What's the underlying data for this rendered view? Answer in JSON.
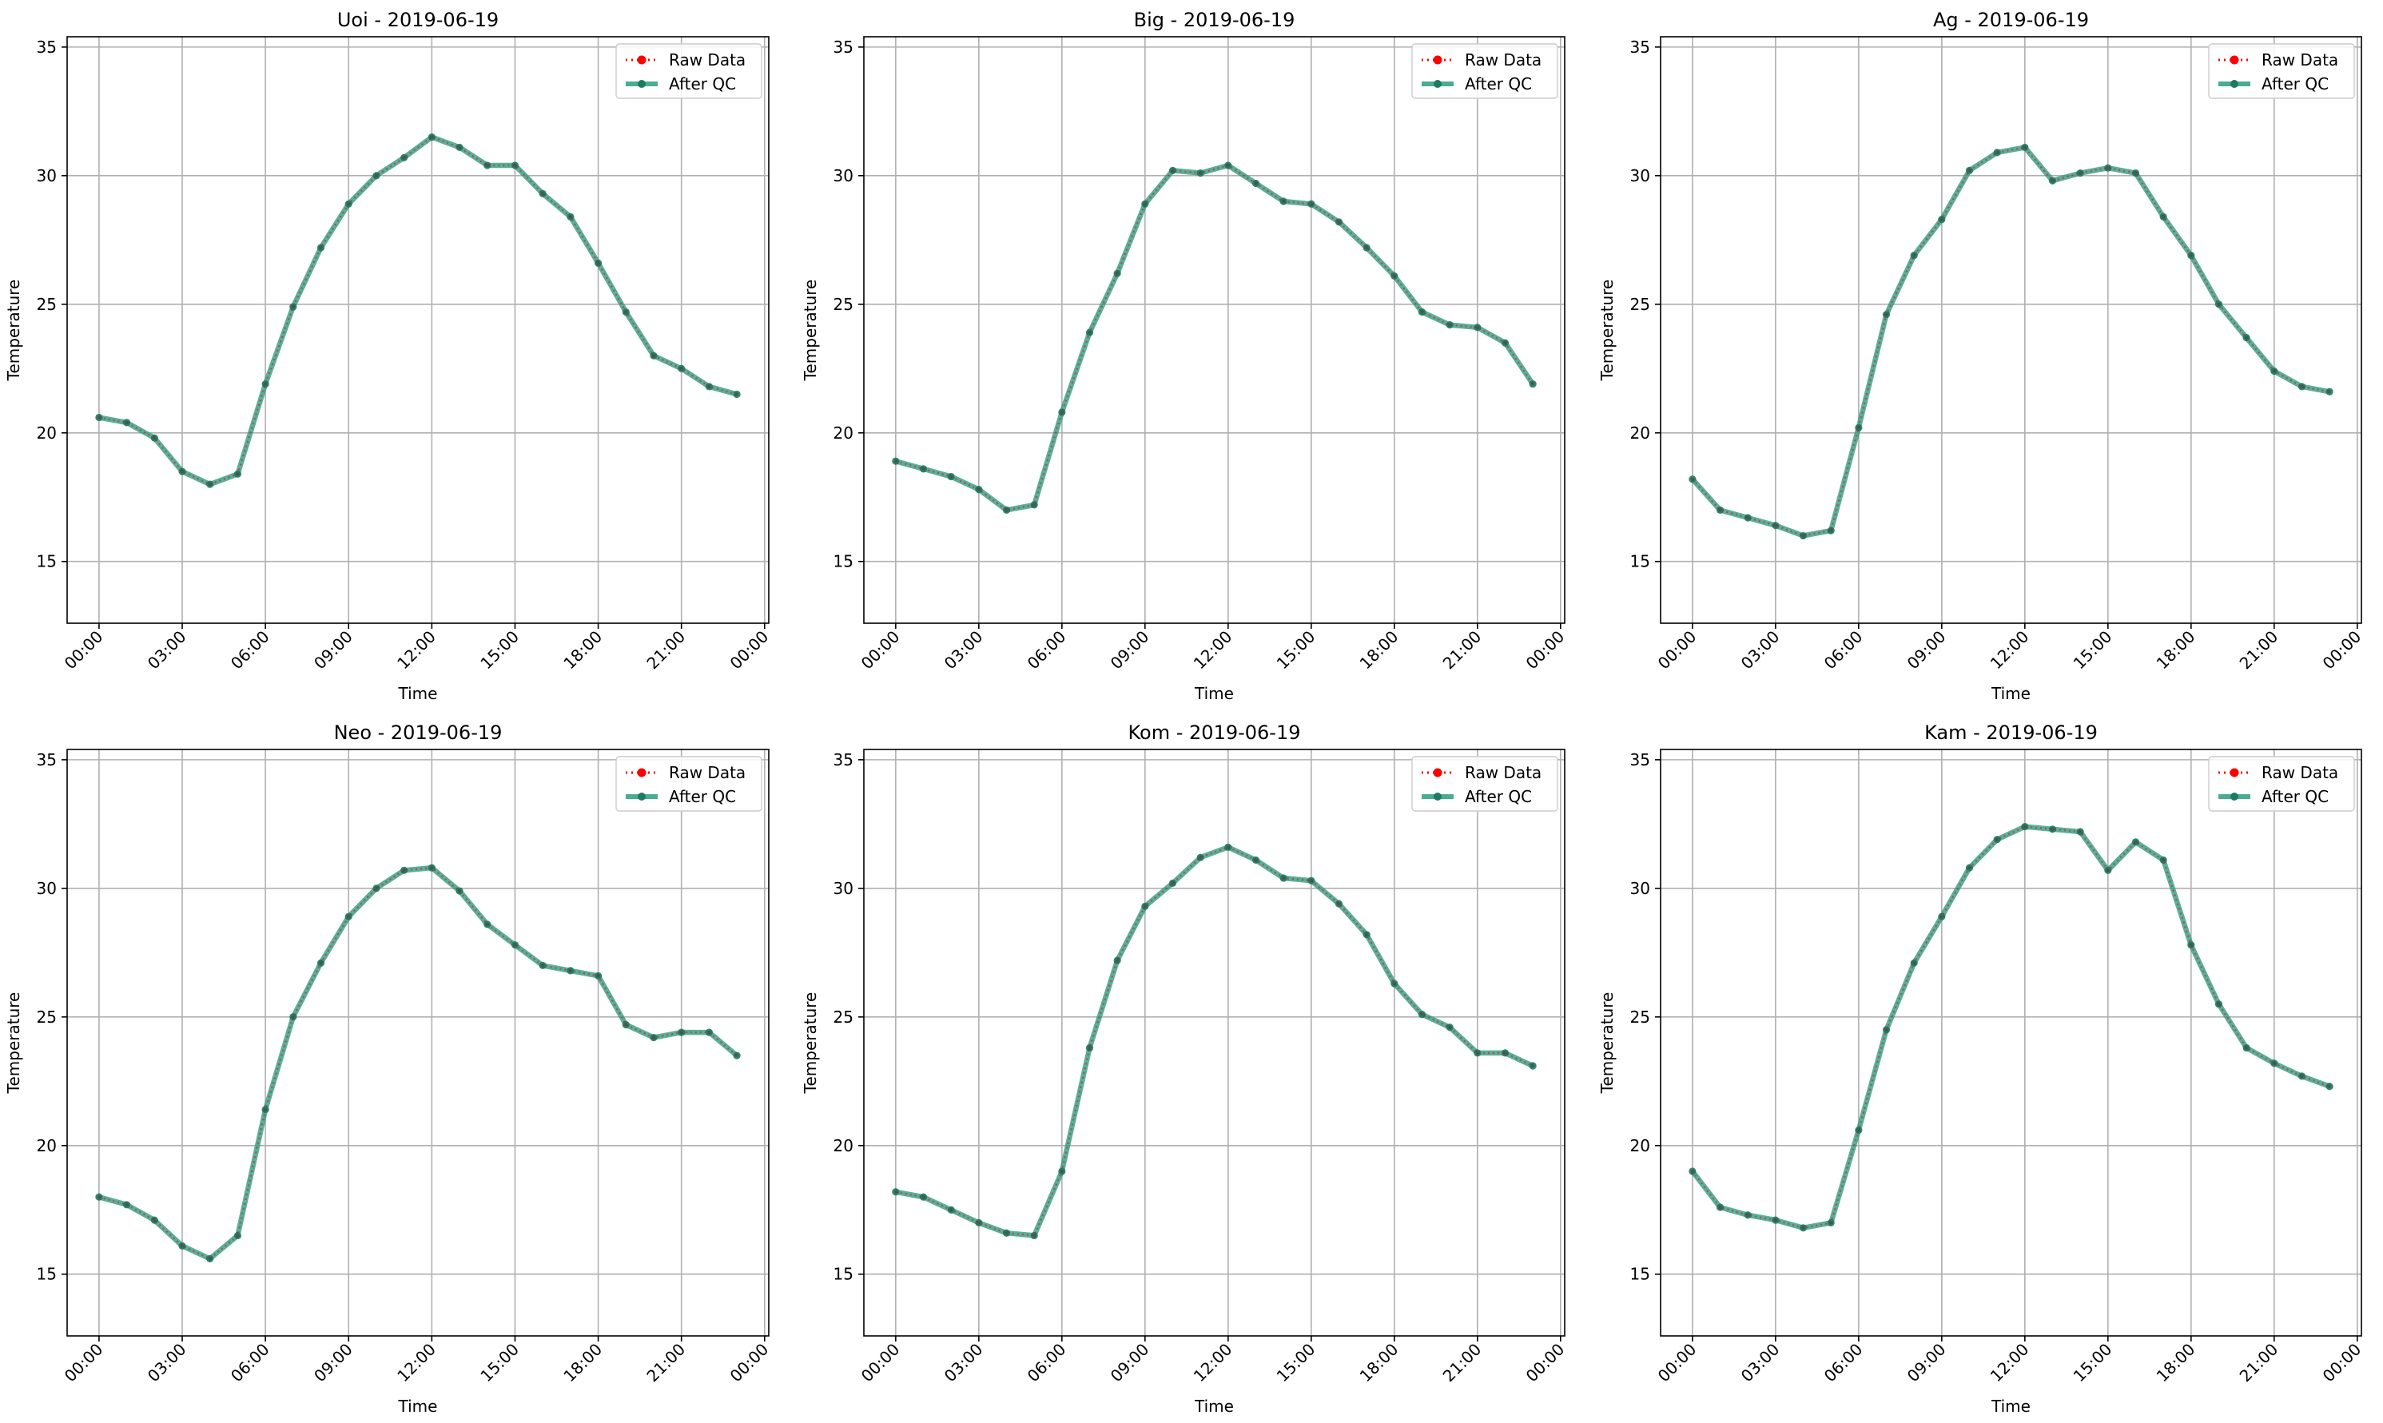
{
  "chart_data": [
    {
      "type": "line",
      "title": "Uoi - 2019-06-19",
      "xlabel": "Time",
      "ylabel": "Temperature",
      "x": [
        "00:00",
        "01:00",
        "02:00",
        "03:00",
        "04:00",
        "05:00",
        "06:00",
        "07:00",
        "08:00",
        "09:00",
        "10:00",
        "11:00",
        "12:00",
        "13:00",
        "14:00",
        "15:00",
        "16:00",
        "17:00",
        "18:00",
        "19:00",
        "20:00",
        "21:00",
        "22:00",
        "23:00"
      ],
      "xticks": [
        "00:00",
        "03:00",
        "06:00",
        "09:00",
        "12:00",
        "15:00",
        "18:00",
        "21:00",
        "00:00"
      ],
      "xlim_hours": [
        -1.15,
        24.15
      ],
      "yticks": [
        15,
        20,
        25,
        30,
        35
      ],
      "ylim": [
        12.6,
        35.4
      ],
      "grid": true,
      "legend": "top-right",
      "series": [
        {
          "name": "Raw Data",
          "color": "#ff0000",
          "style": "dotted",
          "values": [
            20.6,
            20.4,
            19.8,
            18.5,
            18.0,
            18.4,
            21.9,
            24.9,
            27.2,
            28.9,
            30.0,
            30.7,
            31.5,
            31.1,
            30.4,
            30.4,
            29.3,
            28.4,
            26.6,
            24.7,
            23.0,
            22.5,
            21.8,
            21.5
          ]
        },
        {
          "name": "After QC",
          "color": "#2a9d7f",
          "style": "solid",
          "values": [
            20.6,
            20.4,
            19.8,
            18.5,
            18.0,
            18.4,
            21.9,
            24.9,
            27.2,
            28.9,
            30.0,
            30.7,
            31.5,
            31.1,
            30.4,
            30.4,
            29.3,
            28.4,
            26.6,
            24.7,
            23.0,
            22.5,
            21.8,
            21.5
          ]
        }
      ]
    },
    {
      "type": "line",
      "title": "Big - 2019-06-19",
      "xlabel": "Time",
      "ylabel": "Temperature",
      "x": [
        "00:00",
        "01:00",
        "02:00",
        "03:00",
        "04:00",
        "05:00",
        "06:00",
        "07:00",
        "08:00",
        "09:00",
        "10:00",
        "11:00",
        "12:00",
        "13:00",
        "14:00",
        "15:00",
        "16:00",
        "17:00",
        "18:00",
        "19:00",
        "20:00",
        "21:00",
        "22:00",
        "23:00"
      ],
      "xticks": [
        "00:00",
        "03:00",
        "06:00",
        "09:00",
        "12:00",
        "15:00",
        "18:00",
        "21:00",
        "00:00"
      ],
      "xlim_hours": [
        -1.15,
        24.15
      ],
      "yticks": [
        15,
        20,
        25,
        30,
        35
      ],
      "ylim": [
        12.6,
        35.4
      ],
      "grid": true,
      "legend": "top-right",
      "series": [
        {
          "name": "Raw Data",
          "color": "#ff0000",
          "style": "dotted",
          "values": [
            18.9,
            18.6,
            18.3,
            17.8,
            17.0,
            17.2,
            20.8,
            23.9,
            26.2,
            28.9,
            30.2,
            30.1,
            30.4,
            29.7,
            29.0,
            28.9,
            28.2,
            27.2,
            26.1,
            24.7,
            24.2,
            24.1,
            23.5,
            21.9
          ]
        },
        {
          "name": "After QC",
          "color": "#2a9d7f",
          "style": "solid",
          "values": [
            18.9,
            18.6,
            18.3,
            17.8,
            17.0,
            17.2,
            20.8,
            23.9,
            26.2,
            28.9,
            30.2,
            30.1,
            30.4,
            29.7,
            29.0,
            28.9,
            28.2,
            27.2,
            26.1,
            24.7,
            24.2,
            24.1,
            23.5,
            21.9
          ]
        }
      ]
    },
    {
      "type": "line",
      "title": "Ag - 2019-06-19",
      "xlabel": "Time",
      "ylabel": "Temperature",
      "x": [
        "00:00",
        "01:00",
        "02:00",
        "03:00",
        "04:00",
        "05:00",
        "06:00",
        "07:00",
        "08:00",
        "09:00",
        "10:00",
        "11:00",
        "12:00",
        "13:00",
        "14:00",
        "15:00",
        "16:00",
        "17:00",
        "18:00",
        "19:00",
        "20:00",
        "21:00",
        "22:00",
        "23:00"
      ],
      "xticks": [
        "00:00",
        "03:00",
        "06:00",
        "09:00",
        "12:00",
        "15:00",
        "18:00",
        "21:00",
        "00:00"
      ],
      "xlim_hours": [
        -1.15,
        24.15
      ],
      "yticks": [
        15,
        20,
        25,
        30,
        35
      ],
      "ylim": [
        12.6,
        35.4
      ],
      "grid": true,
      "legend": "top-right",
      "series": [
        {
          "name": "Raw Data",
          "color": "#ff0000",
          "style": "dotted",
          "values": [
            18.2,
            17.0,
            16.7,
            16.4,
            16.0,
            16.2,
            20.2,
            24.6,
            26.9,
            28.3,
            30.2,
            30.9,
            31.1,
            29.8,
            30.1,
            30.3,
            30.1,
            28.4,
            26.9,
            25.0,
            23.7,
            22.4,
            21.8,
            21.6
          ]
        },
        {
          "name": "After QC",
          "color": "#2a9d7f",
          "style": "solid",
          "values": [
            18.2,
            17.0,
            16.7,
            16.4,
            16.0,
            16.2,
            20.2,
            24.6,
            26.9,
            28.3,
            30.2,
            30.9,
            31.1,
            29.8,
            30.1,
            30.3,
            30.1,
            28.4,
            26.9,
            25.0,
            23.7,
            22.4,
            21.8,
            21.6
          ]
        }
      ]
    },
    {
      "type": "line",
      "title": "Neo - 2019-06-19",
      "xlabel": "Time",
      "ylabel": "Temperature",
      "x": [
        "00:00",
        "01:00",
        "02:00",
        "03:00",
        "04:00",
        "05:00",
        "06:00",
        "07:00",
        "08:00",
        "09:00",
        "10:00",
        "11:00",
        "12:00",
        "13:00",
        "14:00",
        "15:00",
        "16:00",
        "17:00",
        "18:00",
        "19:00",
        "20:00",
        "21:00",
        "22:00",
        "23:00"
      ],
      "xticks": [
        "00:00",
        "03:00",
        "06:00",
        "09:00",
        "12:00",
        "15:00",
        "18:00",
        "21:00",
        "00:00"
      ],
      "xlim_hours": [
        -1.15,
        24.15
      ],
      "yticks": [
        15,
        20,
        25,
        30,
        35
      ],
      "ylim": [
        12.6,
        35.4
      ],
      "grid": true,
      "legend": "top-right",
      "series": [
        {
          "name": "Raw Data",
          "color": "#ff0000",
          "style": "dotted",
          "values": [
            18.0,
            17.7,
            17.1,
            16.1,
            15.6,
            16.5,
            21.4,
            25.0,
            27.1,
            28.9,
            30.0,
            30.7,
            30.8,
            29.9,
            28.6,
            27.8,
            27.0,
            26.8,
            26.6,
            24.7,
            24.2,
            24.4,
            24.4,
            23.5
          ]
        },
        {
          "name": "After QC",
          "color": "#2a9d7f",
          "style": "solid",
          "values": [
            18.0,
            17.7,
            17.1,
            16.1,
            15.6,
            16.5,
            21.4,
            25.0,
            27.1,
            28.9,
            30.0,
            30.7,
            30.8,
            29.9,
            28.6,
            27.8,
            27.0,
            26.8,
            26.6,
            24.7,
            24.2,
            24.4,
            24.4,
            23.5
          ]
        }
      ]
    },
    {
      "type": "line",
      "title": "Kom - 2019-06-19",
      "xlabel": "Time",
      "ylabel": "Temperature",
      "x": [
        "00:00",
        "01:00",
        "02:00",
        "03:00",
        "04:00",
        "05:00",
        "06:00",
        "07:00",
        "08:00",
        "09:00",
        "10:00",
        "11:00",
        "12:00",
        "13:00",
        "14:00",
        "15:00",
        "16:00",
        "17:00",
        "18:00",
        "19:00",
        "20:00",
        "21:00",
        "22:00",
        "23:00"
      ],
      "xticks": [
        "00:00",
        "03:00",
        "06:00",
        "09:00",
        "12:00",
        "15:00",
        "18:00",
        "21:00",
        "00:00"
      ],
      "xlim_hours": [
        -1.15,
        24.15
      ],
      "yticks": [
        15,
        20,
        25,
        30,
        35
      ],
      "ylim": [
        12.6,
        35.4
      ],
      "grid": true,
      "legend": "top-right",
      "series": [
        {
          "name": "Raw Data",
          "color": "#ff0000",
          "style": "dotted",
          "values": [
            18.2,
            18.0,
            17.5,
            17.0,
            16.6,
            16.5,
            19.0,
            23.8,
            27.2,
            29.3,
            30.2,
            31.2,
            31.6,
            31.1,
            30.4,
            30.3,
            29.4,
            28.2,
            26.3,
            25.1,
            24.6,
            23.6,
            23.6,
            23.1
          ]
        },
        {
          "name": "After QC",
          "color": "#2a9d7f",
          "style": "solid",
          "values": [
            18.2,
            18.0,
            17.5,
            17.0,
            16.6,
            16.5,
            19.0,
            23.8,
            27.2,
            29.3,
            30.2,
            31.2,
            31.6,
            31.1,
            30.4,
            30.3,
            29.4,
            28.2,
            26.3,
            25.1,
            24.6,
            23.6,
            23.6,
            23.1
          ]
        }
      ]
    },
    {
      "type": "line",
      "title": "Kam - 2019-06-19",
      "xlabel": "Time",
      "ylabel": "Temperature",
      "x": [
        "00:00",
        "01:00",
        "02:00",
        "03:00",
        "04:00",
        "05:00",
        "06:00",
        "07:00",
        "08:00",
        "09:00",
        "10:00",
        "11:00",
        "12:00",
        "13:00",
        "14:00",
        "15:00",
        "16:00",
        "17:00",
        "18:00",
        "19:00",
        "20:00",
        "21:00",
        "22:00",
        "23:00"
      ],
      "xticks": [
        "00:00",
        "03:00",
        "06:00",
        "09:00",
        "12:00",
        "15:00",
        "18:00",
        "21:00",
        "00:00"
      ],
      "xlim_hours": [
        -1.15,
        24.15
      ],
      "yticks": [
        15,
        20,
        25,
        30,
        35
      ],
      "ylim": [
        12.6,
        35.4
      ],
      "grid": true,
      "legend": "top-right",
      "series": [
        {
          "name": "Raw Data",
          "color": "#ff0000",
          "style": "dotted",
          "values": [
            19.0,
            17.6,
            17.3,
            17.1,
            16.8,
            17.0,
            20.6,
            24.5,
            27.1,
            28.9,
            30.8,
            31.9,
            32.4,
            32.3,
            32.2,
            30.7,
            31.8,
            31.1,
            27.8,
            25.5,
            23.8,
            23.2,
            22.7,
            22.3
          ]
        },
        {
          "name": "After QC",
          "color": "#2a9d7f",
          "style": "solid",
          "values": [
            19.0,
            17.6,
            17.3,
            17.1,
            16.8,
            17.0,
            20.6,
            24.5,
            27.1,
            28.9,
            30.8,
            31.9,
            32.4,
            32.3,
            32.2,
            30.7,
            31.8,
            31.1,
            27.8,
            25.5,
            23.8,
            23.2,
            22.7,
            22.3
          ]
        }
      ]
    }
  ]
}
